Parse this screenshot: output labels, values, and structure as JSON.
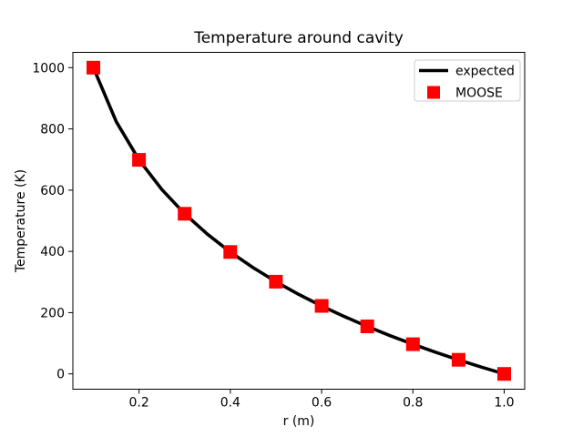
{
  "figure": {
    "background": "#ffffff",
    "text_color": "#000000",
    "legend_border_color": "#cccccc"
  },
  "chart_data": {
    "type": "line",
    "title": "Temperature around cavity",
    "xlabel": "r (m)",
    "ylabel": "Temperature (K)",
    "xlim": [
      0.055,
      1.045
    ],
    "ylim": [
      -50,
      1050
    ],
    "xticks": [
      0.2,
      0.4,
      0.6,
      0.8,
      1.0
    ],
    "xtick_labels": [
      "0.2",
      "0.4",
      "0.6",
      "0.8",
      "1.0"
    ],
    "yticks": [
      0,
      200,
      400,
      600,
      800,
      1000
    ],
    "ytick_labels": [
      "0",
      "200",
      "400",
      "600",
      "800",
      "1000"
    ],
    "grid": false,
    "legend": {
      "position": "upper right",
      "entries": [
        "expected",
        "MOOSE"
      ]
    },
    "series": [
      {
        "name": "expected",
        "plot_type": "line",
        "color": "#000000",
        "linewidth": 3.6,
        "x": [
          0.1,
          0.15,
          0.2,
          0.25,
          0.3,
          0.35,
          0.4,
          0.45,
          0.5,
          0.55,
          0.6,
          0.65,
          0.7,
          0.75,
          0.8,
          0.85,
          0.9,
          0.95,
          1.0
        ],
        "y": [
          1000.0,
          823.9,
          699.0,
          602.1,
          522.9,
          455.9,
          397.9,
          346.8,
          301.0,
          259.6,
          221.8,
          187.1,
          154.9,
          124.9,
          96.9,
          70.6,
          45.8,
          22.3,
          0.0
        ]
      },
      {
        "name": "MOOSE",
        "plot_type": "scatter",
        "marker": "square",
        "color": "#ff0000",
        "markersize": 15,
        "x": [
          0.1,
          0.2,
          0.3,
          0.4,
          0.5,
          0.6,
          0.7,
          0.8,
          0.9,
          1.0
        ],
        "y": [
          1000,
          699,
          523,
          398,
          301,
          222,
          155,
          97,
          46,
          0
        ]
      }
    ]
  }
}
